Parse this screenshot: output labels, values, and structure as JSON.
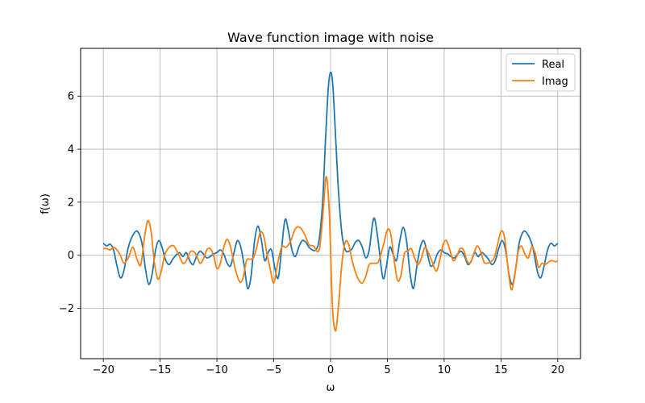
{
  "chart_data": {
    "type": "line",
    "title": "Wave function image with noise",
    "xlabel": "ω",
    "ylabel": "f(ω)",
    "xlim": [
      -22,
      22
    ],
    "ylim": [
      -3.9,
      7.8
    ],
    "xticks": [
      -20,
      -15,
      -10,
      -5,
      0,
      5,
      10,
      15,
      20
    ],
    "xtick_labels": [
      "−20",
      "−15",
      "−10",
      "−5",
      "0",
      "5",
      "10",
      "15",
      "20"
    ],
    "yticks": [
      -2,
      0,
      2,
      4,
      6
    ],
    "ytick_labels": [
      "−2",
      "0",
      "2",
      "4",
      "6"
    ],
    "grid": true,
    "legend_position": "top-right",
    "series": [
      {
        "name": "Real",
        "color": "#1f77b4",
        "points": [
          [
            -20,
            0.45
          ],
          [
            -19.7,
            0.35
          ],
          [
            -19.4,
            0.42
          ],
          [
            -19.1,
            0.2
          ],
          [
            -18.8,
            -0.4
          ],
          [
            -18.5,
            -0.85
          ],
          [
            -18.2,
            -0.6
          ],
          [
            -17.8,
            0.3
          ],
          [
            -17.4,
            0.75
          ],
          [
            -17.0,
            0.9
          ],
          [
            -16.6,
            0.45
          ],
          [
            -16.3,
            -0.5
          ],
          [
            -16.0,
            -1.1
          ],
          [
            -15.7,
            -0.7
          ],
          [
            -15.4,
            0.2
          ],
          [
            -15.1,
            0.55
          ],
          [
            -14.8,
            0.25
          ],
          [
            -14.5,
            -0.2
          ],
          [
            -14.2,
            -0.35
          ],
          [
            -13.9,
            -0.15
          ],
          [
            -13.6,
            0.0
          ],
          [
            -13.3,
            0.1
          ],
          [
            -13.0,
            -0.05
          ],
          [
            -12.7,
            0.1
          ],
          [
            -12.4,
            -0.2
          ],
          [
            -12.1,
            -0.35
          ],
          [
            -11.8,
            -0.05
          ],
          [
            -11.5,
            0.15
          ],
          [
            -11.2,
            0.05
          ],
          [
            -10.9,
            -0.1
          ],
          [
            -10.6,
            -0.05
          ],
          [
            -10.3,
            0.05
          ],
          [
            -10.0,
            0.1
          ],
          [
            -9.7,
            0.2
          ],
          [
            -9.4,
            0.05
          ],
          [
            -9.1,
            -0.3
          ],
          [
            -8.8,
            -0.4
          ],
          [
            -8.5,
            0.1
          ],
          [
            -8.2,
            0.55
          ],
          [
            -7.9,
            0.3
          ],
          [
            -7.6,
            -0.4
          ],
          [
            -7.3,
            -1.25
          ],
          [
            -7.0,
            -0.8
          ],
          [
            -6.7,
            0.5
          ],
          [
            -6.4,
            1.1
          ],
          [
            -6.1,
            0.6
          ],
          [
            -5.8,
            -0.2
          ],
          [
            -5.5,
            0.1
          ],
          [
            -5.2,
            0.2
          ],
          [
            -4.9,
            -0.5
          ],
          [
            -4.6,
            -0.85
          ],
          [
            -4.3,
            0.3
          ],
          [
            -4.0,
            1.35
          ],
          [
            -3.7,
            0.9
          ],
          [
            -3.4,
            0.2
          ],
          [
            -3.1,
            -0.05
          ],
          [
            -2.8,
            0.3
          ],
          [
            -2.5,
            0.55
          ],
          [
            -2.2,
            0.5
          ],
          [
            -1.9,
            0.3
          ],
          [
            -1.6,
            0.2
          ],
          [
            -1.3,
            0.2
          ],
          [
            -1.0,
            0.6
          ],
          [
            -0.7,
            2.0
          ],
          [
            -0.45,
            4.3
          ],
          [
            -0.2,
            6.3
          ],
          [
            0.0,
            6.9
          ],
          [
            0.2,
            6.4
          ],
          [
            0.45,
            4.4
          ],
          [
            0.7,
            2.4
          ],
          [
            1.0,
            0.8
          ],
          [
            1.3,
            0.2
          ],
          [
            1.6,
            0.15
          ],
          [
            1.9,
            0.25
          ],
          [
            2.2,
            0.5
          ],
          [
            2.5,
            0.55
          ],
          [
            2.8,
            0.3
          ],
          [
            3.1,
            -0.1
          ],
          [
            3.4,
            0.2
          ],
          [
            3.7,
            1.2
          ],
          [
            3.9,
            1.35
          ],
          [
            4.2,
            0.5
          ],
          [
            4.6,
            -0.85
          ],
          [
            4.9,
            -0.45
          ],
          [
            5.2,
            0.3
          ],
          [
            5.5,
            0.05
          ],
          [
            5.8,
            -0.2
          ],
          [
            6.1,
            0.55
          ],
          [
            6.4,
            1.05
          ],
          [
            6.7,
            0.5
          ],
          [
            7.0,
            -0.7
          ],
          [
            7.3,
            -1.25
          ],
          [
            7.6,
            -0.4
          ],
          [
            7.9,
            0.3
          ],
          [
            8.2,
            0.55
          ],
          [
            8.5,
            0.1
          ],
          [
            8.8,
            -0.4
          ],
          [
            9.1,
            -0.3
          ],
          [
            9.4,
            0.05
          ],
          [
            9.7,
            0.2
          ],
          [
            10.0,
            0.1
          ],
          [
            10.3,
            0.05
          ],
          [
            10.6,
            -0.05
          ],
          [
            10.9,
            -0.1
          ],
          [
            11.2,
            0.05
          ],
          [
            11.5,
            0.15
          ],
          [
            11.8,
            -0.05
          ],
          [
            12.1,
            -0.35
          ],
          [
            12.4,
            -0.2
          ],
          [
            12.7,
            0.1
          ],
          [
            13.0,
            -0.05
          ],
          [
            13.3,
            0.1
          ],
          [
            13.6,
            0.0
          ],
          [
            13.9,
            -0.15
          ],
          [
            14.2,
            -0.35
          ],
          [
            14.5,
            -0.2
          ],
          [
            14.8,
            0.25
          ],
          [
            15.1,
            0.55
          ],
          [
            15.4,
            0.2
          ],
          [
            15.7,
            -0.7
          ],
          [
            16.0,
            -1.1
          ],
          [
            16.3,
            -0.5
          ],
          [
            16.6,
            0.45
          ],
          [
            17.0,
            0.9
          ],
          [
            17.4,
            0.75
          ],
          [
            17.8,
            0.3
          ],
          [
            18.2,
            -0.6
          ],
          [
            18.5,
            -0.85
          ],
          [
            18.8,
            -0.4
          ],
          [
            19.1,
            0.2
          ],
          [
            19.4,
            0.45
          ],
          [
            19.7,
            0.35
          ],
          [
            20.0,
            0.45
          ]
        ]
      },
      {
        "name": "Imag",
        "color": "#ff7f0e",
        "points": [
          [
            -20,
            0.25
          ],
          [
            -19.7,
            0.25
          ],
          [
            -19.4,
            0.2
          ],
          [
            -19.1,
            0.3
          ],
          [
            -18.8,
            0.2
          ],
          [
            -18.5,
            0.0
          ],
          [
            -18.2,
            -0.3
          ],
          [
            -17.8,
            -0.1
          ],
          [
            -17.4,
            0.3
          ],
          [
            -17.0,
            -0.2
          ],
          [
            -16.7,
            -0.35
          ],
          [
            -16.4,
            0.6
          ],
          [
            -16.1,
            1.3
          ],
          [
            -15.8,
            0.9
          ],
          [
            -15.5,
            -0.3
          ],
          [
            -15.2,
            -0.9
          ],
          [
            -14.9,
            -0.6
          ],
          [
            -14.6,
            0.0
          ],
          [
            -14.2,
            0.3
          ],
          [
            -13.8,
            0.35
          ],
          [
            -13.4,
            0.05
          ],
          [
            -13.0,
            -0.3
          ],
          [
            -12.7,
            -0.2
          ],
          [
            -12.4,
            0.1
          ],
          [
            -12.1,
            0.15
          ],
          [
            -11.8,
            0.0
          ],
          [
            -11.5,
            -0.3
          ],
          [
            -11.2,
            -0.15
          ],
          [
            -10.9,
            0.2
          ],
          [
            -10.6,
            0.25
          ],
          [
            -10.3,
            0.0
          ],
          [
            -10.0,
            -0.5
          ],
          [
            -9.7,
            -0.3
          ],
          [
            -9.4,
            0.3
          ],
          [
            -9.1,
            0.6
          ],
          [
            -8.8,
            0.3
          ],
          [
            -8.4,
            -0.5
          ],
          [
            -8.0,
            -1.0
          ],
          [
            -7.7,
            -0.85
          ],
          [
            -7.4,
            -0.2
          ],
          [
            -7.1,
            -0.15
          ],
          [
            -6.8,
            -0.1
          ],
          [
            -6.5,
            0.3
          ],
          [
            -6.2,
            0.85
          ],
          [
            -5.9,
            0.75
          ],
          [
            -5.6,
            0.05
          ],
          [
            -5.3,
            -0.55
          ],
          [
            -5.0,
            -1.05
          ],
          [
            -4.7,
            -0.4
          ],
          [
            -4.3,
            0.3
          ],
          [
            -3.9,
            0.3
          ],
          [
            -3.5,
            0.55
          ],
          [
            -3.1,
            1.0
          ],
          [
            -2.7,
            1.05
          ],
          [
            -2.3,
            0.8
          ],
          [
            -1.9,
            0.4
          ],
          [
            -1.5,
            0.35
          ],
          [
            -1.2,
            0.15
          ],
          [
            -0.95,
            0.3
          ],
          [
            -0.7,
            1.4
          ],
          [
            -0.45,
            2.8
          ],
          [
            -0.3,
            2.8
          ],
          [
            -0.1,
            1.5
          ],
          [
            0.05,
            -0.5
          ],
          [
            0.2,
            -2.2
          ],
          [
            0.45,
            -2.85
          ],
          [
            0.7,
            -1.9
          ],
          [
            1.0,
            -0.3
          ],
          [
            1.3,
            0.5
          ],
          [
            1.6,
            0.4
          ],
          [
            1.9,
            -0.2
          ],
          [
            2.2,
            -0.65
          ],
          [
            2.5,
            -0.95
          ],
          [
            2.8,
            -1.05
          ],
          [
            3.1,
            -0.8
          ],
          [
            3.4,
            -0.35
          ],
          [
            3.8,
            -0.3
          ],
          [
            4.2,
            -0.25
          ],
          [
            4.6,
            0.3
          ],
          [
            5.0,
            0.95
          ],
          [
            5.3,
            0.8
          ],
          [
            5.6,
            -0.2
          ],
          [
            5.9,
            -0.95
          ],
          [
            6.2,
            -0.75
          ],
          [
            6.5,
            0.05
          ],
          [
            6.8,
            0.15
          ],
          [
            7.1,
            0.25
          ],
          [
            7.4,
            -0.1
          ],
          [
            7.7,
            -0.35
          ],
          [
            8.0,
            -0.1
          ],
          [
            8.3,
            0.3
          ],
          [
            8.6,
            0.1
          ],
          [
            8.9,
            -0.2
          ],
          [
            9.3,
            -0.6
          ],
          [
            9.6,
            -0.2
          ],
          [
            9.9,
            0.4
          ],
          [
            10.2,
            0.55
          ],
          [
            10.5,
            0.2
          ],
          [
            10.8,
            -0.2
          ],
          [
            11.1,
            -0.05
          ],
          [
            11.4,
            0.25
          ],
          [
            11.7,
            0.2
          ],
          [
            12.0,
            -0.2
          ],
          [
            12.3,
            -0.3
          ],
          [
            12.6,
            0.05
          ],
          [
            12.9,
            0.35
          ],
          [
            13.2,
            0.15
          ],
          [
            13.5,
            -0.25
          ],
          [
            13.8,
            -0.3
          ],
          [
            14.1,
            -0.25
          ],
          [
            14.4,
            -0.1
          ],
          [
            14.7,
            0.4
          ],
          [
            15.0,
            0.9
          ],
          [
            15.3,
            0.7
          ],
          [
            15.6,
            -0.4
          ],
          [
            15.9,
            -1.3
          ],
          [
            16.2,
            -0.8
          ],
          [
            16.5,
            0.1
          ],
          [
            16.8,
            0.35
          ],
          [
            17.1,
            0.05
          ],
          [
            17.4,
            -0.1
          ],
          [
            17.7,
            0.3
          ],
          [
            18.0,
            0.1
          ],
          [
            18.3,
            -0.45
          ],
          [
            18.6,
            -0.3
          ],
          [
            18.9,
            -0.35
          ],
          [
            19.2,
            -0.25
          ],
          [
            19.5,
            -0.2
          ],
          [
            19.8,
            -0.25
          ],
          [
            20.0,
            -0.2
          ]
        ]
      }
    ]
  }
}
